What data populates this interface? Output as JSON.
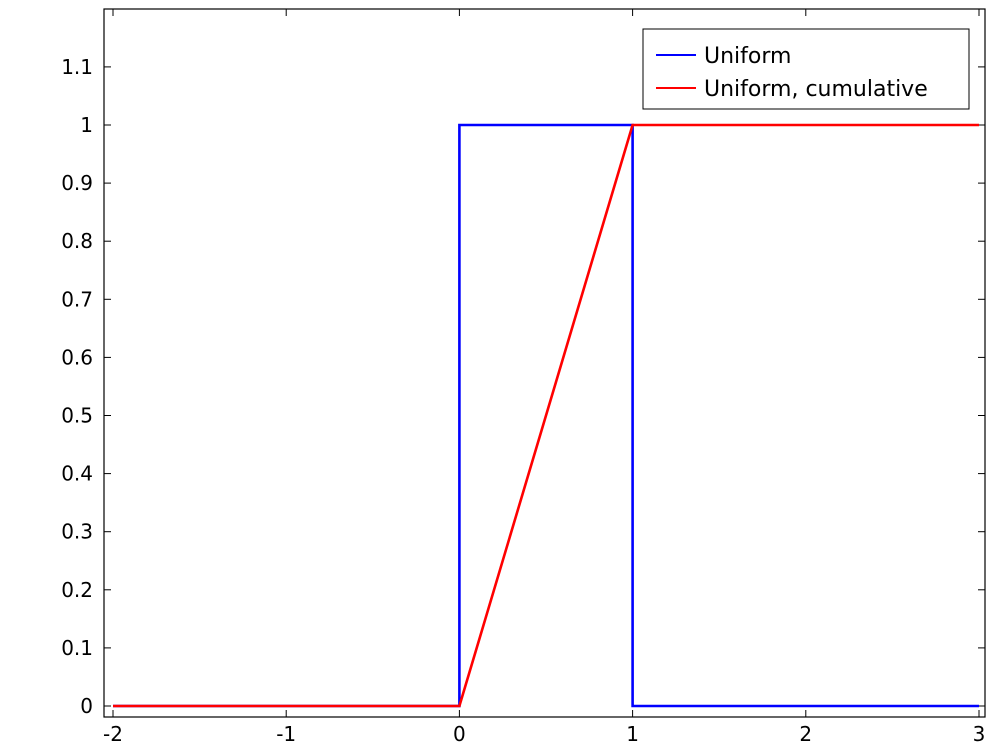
{
  "chart_data": {
    "type": "line",
    "title": "",
    "xlabel": "",
    "ylabel": "",
    "xlim": [
      -2,
      3
    ],
    "ylim": [
      -0.01,
      1.2
    ],
    "grid": false,
    "legend_position": "top-right",
    "x_ticks": [
      -2,
      -1,
      0,
      1,
      2,
      3
    ],
    "x_tick_labels": [
      "-2",
      "-1",
      "0",
      "1",
      "2",
      "3"
    ],
    "y_ticks": [
      0,
      0.1,
      0.2,
      0.3,
      0.4,
      0.5,
      0.6,
      0.7,
      0.8,
      0.9,
      1,
      1.1
    ],
    "y_tick_labels": [
      "0",
      "0.1",
      "0.2",
      "0.3",
      "0.4",
      "0.5",
      "0.6",
      "0.7",
      "0.8",
      "0.9",
      "1",
      "1.1"
    ],
    "series": [
      {
        "name": "Uniform",
        "color": "#0000ff",
        "x": [
          -2,
          0,
          0,
          1,
          1,
          3
        ],
        "y": [
          0,
          0,
          1,
          1,
          0,
          0
        ]
      },
      {
        "name": "Uniform, cumulative",
        "color": "#ff0000",
        "x": [
          -2,
          0,
          1,
          3
        ],
        "y": [
          0,
          0,
          1,
          1
        ]
      }
    ]
  }
}
